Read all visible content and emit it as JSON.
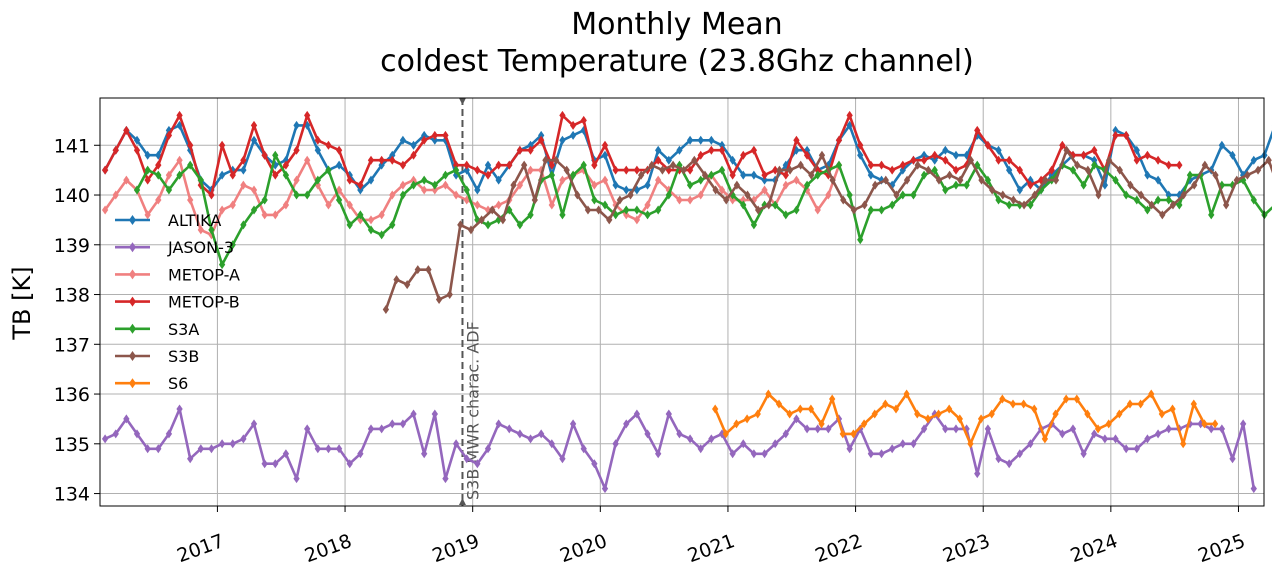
{
  "chart_data": {
    "type": "line",
    "title": [
      "Monthly Mean",
      "coldest Temperature (23.8Ghz channel)"
    ],
    "xlabel": "",
    "ylabel": "TB [K]",
    "ylim": [
      133.75,
      141.95
    ],
    "xlim": [
      2016.08,
      2025.2
    ],
    "y_ticks": [
      134,
      135,
      136,
      137,
      138,
      139,
      140,
      141
    ],
    "x_ticks": [
      {
        "label": "2017",
        "value": 2017.0
      },
      {
        "label": "2018",
        "value": 2018.0
      },
      {
        "label": "2019",
        "value": 2019.0
      },
      {
        "label": "2020",
        "value": 2020.0
      },
      {
        "label": "2021",
        "value": 2021.0
      },
      {
        "label": "2022",
        "value": 2022.0
      },
      {
        "label": "2023",
        "value": 2023.0
      },
      {
        "label": "2024",
        "value": 2024.0
      },
      {
        "label": "2025",
        "value": 2025.0
      }
    ],
    "grid": true,
    "legend_position": "left",
    "marker": "diamond",
    "vline": {
      "x": 2018.92,
      "label": "S3B MWR charac. ADF",
      "color": "#555555",
      "style": "dashed"
    },
    "series": [
      {
        "name": "ALTIKA",
        "color": "#1f77b4",
        "start": 2016.12,
        "values": [
          140.5,
          140.9,
          141.3,
          141.1,
          140.8,
          140.8,
          141.3,
          141.4,
          140.9,
          140.3,
          140.1,
          140.4,
          140.5,
          140.5,
          141.1,
          140.8,
          140.6,
          140.7,
          141.4,
          141.4,
          140.9,
          140.5,
          140.6,
          140.4,
          140.1,
          140.3,
          140.6,
          140.8,
          141.1,
          141.0,
          141.2,
          141.1,
          141.1,
          140.4,
          140.5,
          140.1,
          140.6,
          140.3,
          140.6,
          140.9,
          141.0,
          141.2,
          140.4,
          141.1,
          141.2,
          141.3,
          140.7,
          140.8,
          140.2,
          140.1,
          140.1,
          140.2,
          140.9,
          140.7,
          140.9,
          141.1,
          141.1,
          141.1,
          141.0,
          140.7,
          140.4,
          140.4,
          140.3,
          140.3,
          140.6,
          140.9,
          140.9,
          140.5,
          140.6,
          141.1,
          141.4,
          140.8,
          140.4,
          140.3,
          140.2,
          140.5,
          140.7,
          140.8,
          140.7,
          140.9,
          140.8,
          140.8,
          141.2,
          141.0,
          140.9,
          140.5,
          140.1,
          140.3,
          140.1,
          140.4,
          140.6,
          140.8,
          140.8,
          140.7,
          140.2,
          141.3,
          141.2,
          140.9,
          140.4,
          140.3,
          140.0,
          140.0,
          140.3,
          140.4,
          140.5,
          141.0,
          140.8,
          140.4,
          140.7,
          140.8,
          141.4,
          140.5,
          140.1,
          140.5
        ]
      },
      {
        "name": "JASON-3",
        "color": "#9467bd",
        "start": 2016.12,
        "values": [
          135.1,
          135.2,
          135.5,
          135.2,
          134.9,
          134.9,
          135.2,
          135.7,
          134.7,
          134.9,
          134.9,
          135.0,
          135.0,
          135.1,
          135.4,
          134.6,
          134.6,
          134.8,
          134.3,
          135.3,
          134.9,
          134.9,
          134.9,
          134.6,
          134.8,
          135.3,
          135.3,
          135.4,
          135.4,
          135.6,
          134.8,
          135.6,
          134.3,
          135.0,
          134.7,
          134.6,
          134.9,
          135.4,
          135.3,
          135.2,
          135.1,
          135.2,
          135.0,
          134.7,
          135.4,
          134.9,
          134.6,
          134.1,
          135.0,
          135.4,
          135.6,
          135.2,
          134.8,
          135.6,
          135.2,
          135.1,
          134.9,
          135.1,
          135.2,
          134.8,
          135.0,
          134.8,
          134.8,
          135.0,
          135.2,
          135.5,
          135.3,
          135.3,
          135.3,
          135.5,
          134.9,
          135.3,
          134.8,
          134.8,
          134.9,
          135.0,
          135.0,
          135.3,
          135.6,
          135.3,
          135.3,
          135.3,
          134.4,
          135.3,
          134.7,
          134.6,
          134.8,
          135.0,
          135.3,
          135.4,
          135.2,
          135.3,
          134.8,
          135.2,
          135.1,
          135.1,
          134.9,
          134.9,
          135.1,
          135.2,
          135.3,
          135.3,
          135.4,
          135.4,
          135.3,
          135.3,
          134.7,
          135.4,
          134.1
        ]
      },
      {
        "name": "METOP-A",
        "color": "#f08080",
        "start": 2016.12,
        "values": [
          139.7,
          140.0,
          140.3,
          140.1,
          139.6,
          139.9,
          140.4,
          140.7,
          139.9,
          139.3,
          139.2,
          139.7,
          139.8,
          140.2,
          140.1,
          139.6,
          139.6,
          139.8,
          140.3,
          140.7,
          140.2,
          139.8,
          140.1,
          139.8,
          139.5,
          139.5,
          139.6,
          140.0,
          140.2,
          140.3,
          140.1,
          140.1,
          140.2,
          140.0,
          139.9,
          139.8,
          139.7,
          139.8,
          139.9,
          140.2,
          140.5,
          140.5,
          139.8,
          140.3,
          140.4,
          140.5,
          140.2,
          140.3,
          139.8,
          139.6,
          139.5,
          139.8,
          140.3,
          140.1,
          139.9,
          139.9,
          140.0,
          140.4,
          140.1,
          139.9,
          139.9,
          139.9,
          140.1,
          139.8,
          140.2,
          140.3,
          140.1,
          139.7,
          140.0,
          140.6
        ]
      },
      {
        "name": "METOP-B",
        "color": "#d62728",
        "start": 2016.12,
        "values": [
          140.5,
          140.9,
          141.3,
          140.9,
          140.3,
          140.6,
          141.2,
          141.6,
          141.0,
          140.2,
          140.0,
          141.0,
          140.4,
          140.7,
          141.4,
          140.8,
          140.4,
          140.6,
          140.9,
          141.6,
          141.1,
          141.0,
          140.9,
          140.3,
          140.2,
          140.7,
          140.7,
          140.7,
          140.6,
          140.8,
          141.1,
          141.2,
          141.2,
          140.6,
          140.6,
          140.5,
          140.4,
          140.6,
          140.6,
          140.9,
          140.9,
          141.1,
          140.6,
          141.6,
          141.4,
          141.5,
          140.6,
          141.0,
          140.5,
          140.5,
          140.5,
          140.5,
          140.7,
          140.5,
          140.5,
          140.5,
          140.8,
          140.9,
          140.9,
          140.4,
          140.8,
          140.9,
          140.4,
          140.5,
          140.4,
          141.1,
          140.8,
          140.5,
          140.4,
          141.1,
          141.6,
          141.0,
          140.6,
          140.6,
          140.5,
          140.6,
          140.7,
          140.7,
          140.8,
          140.7,
          140.5,
          140.6,
          141.3,
          141.0,
          140.7,
          140.7,
          140.5,
          140.2,
          140.3,
          140.5,
          141.0,
          140.8,
          140.8,
          140.9,
          140.5,
          141.2,
          141.2,
          140.7,
          140.8,
          140.7,
          140.6,
          140.6
        ]
      },
      {
        "name": "S3A",
        "color": "#2ca02c",
        "start": 2016.37,
        "values": [
          140.1,
          140.5,
          140.4,
          140.1,
          140.4,
          140.6,
          140.3,
          139.3,
          138.6,
          139.0,
          139.4,
          139.7,
          139.9,
          140.8,
          140.4,
          140.0,
          140.0,
          140.3,
          140.5,
          139.9,
          139.4,
          139.6,
          139.3,
          139.2,
          139.4,
          140.0,
          140.2,
          140.3,
          140.2,
          140.4,
          140.5,
          140.1,
          139.5,
          139.4,
          139.5,
          139.7,
          139.4,
          139.6,
          140.3,
          140.4,
          139.6,
          140.4,
          140.6,
          139.9,
          139.8,
          139.6,
          139.7,
          139.7,
          139.6,
          139.7,
          140.0,
          140.6,
          140.2,
          140.3,
          140.4,
          140.5,
          140.0,
          139.8,
          139.4,
          139.8,
          139.8,
          139.6,
          139.7,
          140.2,
          140.4,
          140.5,
          140.6,
          140.0,
          139.1,
          139.7,
          139.7,
          139.8,
          140.0,
          140.0,
          140.4,
          140.5,
          140.1,
          140.2,
          140.2,
          140.6,
          140.3,
          139.9,
          139.8,
          139.8,
          139.8,
          140.1,
          140.3,
          140.6,
          140.5,
          140.2,
          140.6,
          140.5,
          140.3,
          140.0,
          139.9,
          139.7,
          139.9,
          139.9,
          139.8,
          140.4,
          140.4,
          139.6,
          140.2,
          140.2,
          140.3,
          139.9,
          139.6,
          139.8,
          139.9
        ]
      },
      {
        "name": "S3B",
        "color": "#8c564b",
        "start": 2018.32,
        "values": [
          137.7,
          138.3,
          138.2,
          138.5,
          138.5,
          137.9,
          138.0,
          139.4,
          139.3,
          139.5,
          139.7,
          139.5,
          140.2,
          140.6,
          139.9,
          140.7,
          140.7,
          140.5,
          140.0,
          139.7,
          139.7,
          139.5,
          139.9,
          140.0,
          140.4,
          140.6,
          140.5,
          140.6,
          140.5,
          140.7,
          140.4,
          140.1,
          139.9,
          140.2,
          140.0,
          139.7,
          139.8,
          140.5,
          140.5,
          140.6,
          140.4,
          140.8,
          140.3,
          139.9,
          139.7,
          139.8,
          140.2,
          140.3,
          140.0,
          140.3,
          140.6,
          140.5,
          140.3,
          140.4,
          140.3,
          140.7,
          140.3,
          140.1,
          140.0,
          139.9,
          139.8,
          140.0,
          140.3,
          140.3,
          140.9,
          140.6,
          140.5,
          140.0,
          140.7,
          140.5,
          140.2,
          140.0,
          139.8,
          139.6,
          139.8,
          140.0,
          140.2,
          140.6,
          140.4,
          139.8,
          140.3,
          140.4,
          140.5,
          140.7,
          140.1,
          139.9,
          139.9,
          140.3
        ]
      },
      {
        "name": "S6",
        "color": "#ff7f0e",
        "start": 2020.9,
        "values": [
          135.7,
          135.2,
          135.4,
          135.5,
          135.6,
          136.0,
          135.8,
          135.6,
          135.7,
          135.7,
          135.4,
          135.9,
          135.2,
          135.2,
          135.4,
          135.6,
          135.8,
          135.7,
          136.0,
          135.6,
          135.5,
          135.6,
          135.7,
          135.5,
          135.0,
          135.5,
          135.6,
          135.9,
          135.8,
          135.8,
          135.7,
          135.1,
          135.6,
          135.9,
          135.9,
          135.6,
          135.3,
          135.4,
          135.6,
          135.8,
          135.8,
          136.0,
          135.6,
          135.7,
          135.0,
          135.8,
          135.4,
          135.4
        ]
      }
    ]
  }
}
